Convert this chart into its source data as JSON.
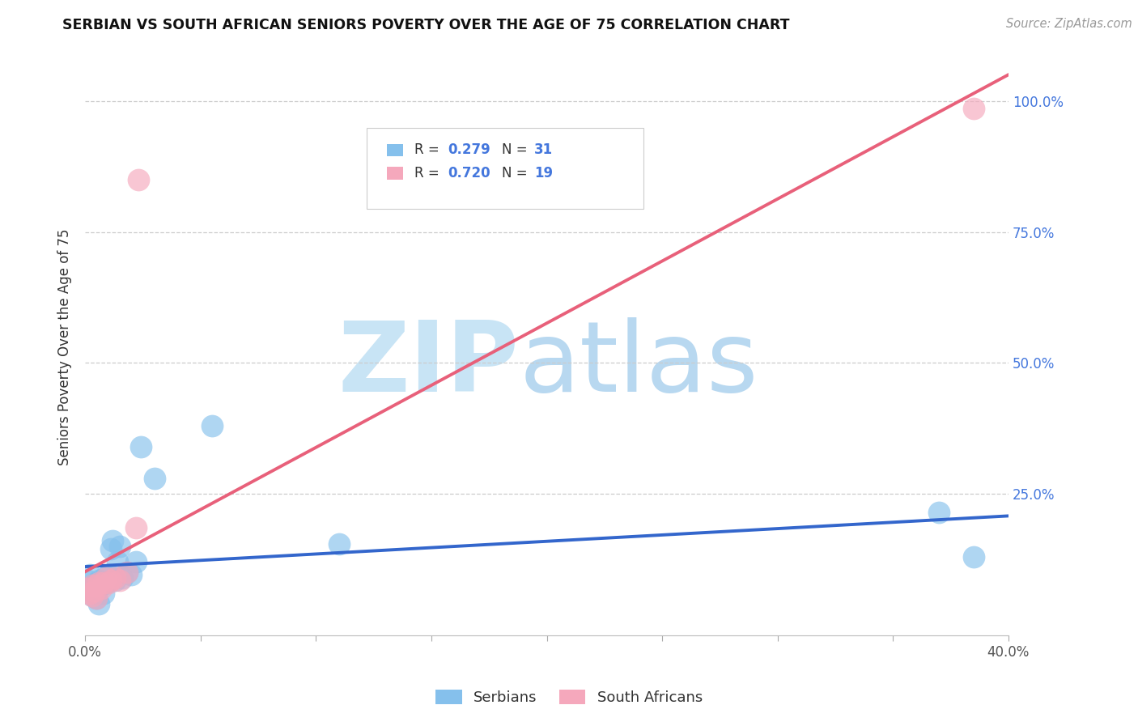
{
  "title": "SERBIAN VS SOUTH AFRICAN SENIORS POVERTY OVER THE AGE OF 75 CORRELATION CHART",
  "source": "Source: ZipAtlas.com",
  "ylabel": "Seniors Poverty Over the Age of 75",
  "xlim": [
    0.0,
    0.4
  ],
  "ylim": [
    -0.02,
    1.08
  ],
  "serbian_color": "#85C0EC",
  "south_african_color": "#F5A8BC",
  "serbian_line_color": "#3366CC",
  "south_african_line_color": "#E8607A",
  "watermark_ZIP_color": "#C8E4F5",
  "watermark_atlas_color": "#B8D8F0",
  "serbians_label": "Serbians",
  "south_africans_label": "South Africans",
  "legend_R1": "R = ",
  "legend_V1": "0.279",
  "legend_N1": "N = ",
  "legend_NV1": "31",
  "legend_R2": "R = ",
  "legend_V2": "0.720",
  "legend_N2": "N = ",
  "legend_NV2": "19",
  "serbian_x": [
    0.001,
    0.002,
    0.002,
    0.003,
    0.003,
    0.004,
    0.004,
    0.005,
    0.005,
    0.006,
    0.006,
    0.007,
    0.008,
    0.008,
    0.009,
    0.01,
    0.011,
    0.012,
    0.013,
    0.014,
    0.015,
    0.016,
    0.018,
    0.02,
    0.022,
    0.024,
    0.03,
    0.055,
    0.11,
    0.37,
    0.385
  ],
  "serbian_y": [
    0.085,
    0.065,
    0.095,
    0.055,
    0.075,
    0.06,
    0.07,
    0.05,
    0.08,
    0.085,
    0.04,
    0.075,
    0.09,
    0.06,
    0.08,
    0.095,
    0.145,
    0.16,
    0.085,
    0.12,
    0.15,
    0.09,
    0.1,
    0.095,
    0.12,
    0.34,
    0.28,
    0.38,
    0.155,
    0.215,
    0.13
  ],
  "sa_x": [
    0.001,
    0.002,
    0.003,
    0.003,
    0.004,
    0.005,
    0.005,
    0.006,
    0.007,
    0.008,
    0.009,
    0.01,
    0.011,
    0.013,
    0.015,
    0.018,
    0.022,
    0.023,
    0.385
  ],
  "sa_y": [
    0.07,
    0.06,
    0.075,
    0.055,
    0.065,
    0.075,
    0.05,
    0.08,
    0.07,
    0.08,
    0.09,
    0.08,
    0.085,
    0.09,
    0.085,
    0.1,
    0.185,
    0.85,
    0.985
  ]
}
